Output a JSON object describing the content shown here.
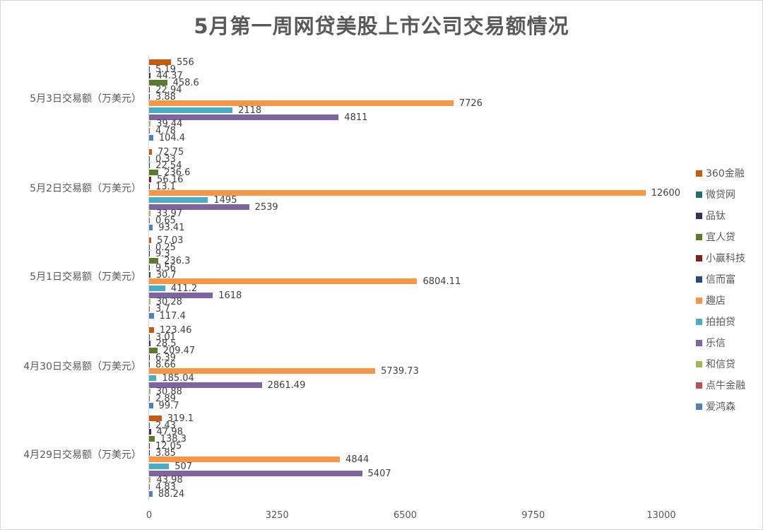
{
  "chart_data": {
    "type": "bar",
    "orientation": "horizontal",
    "title": "5月第一周网贷美股上市公司交易额情况",
    "xlabel": "",
    "ylabel": "",
    "xlim": [
      0,
      13000
    ],
    "x_ticks": [
      "0",
      "3250",
      "6500",
      "9750",
      "13000"
    ],
    "grid": false,
    "legend_position": "right",
    "categories": [
      "5月3日交易额（万美元）",
      "5月2日交易额（万美元）",
      "5月1日交易额（万美元）",
      "4月30日交易额（万美元）",
      "4月29日交易额（万美元）"
    ],
    "series": [
      {
        "name": "360金融",
        "color": "#c55a11",
        "values": [
          556,
          72.75,
          57.03,
          123.46,
          319.1
        ]
      },
      {
        "name": "微贷网",
        "color": "#1f6e7a",
        "values": [
          5.19,
          0.33,
          0.25,
          3.01,
          2.43
        ]
      },
      {
        "name": "品钛",
        "color": "#3c2f5c",
        "values": [
          44.37,
          22.54,
          9.3,
          28.5,
          47.98
        ]
      },
      {
        "name": "宜人贷",
        "color": "#5a7a2e",
        "values": [
          458.6,
          236.6,
          236.3,
          209.47,
          138.3
        ]
      },
      {
        "name": "小赢科技",
        "color": "#7b2222",
        "values": [
          22.94,
          56.16,
          9.56,
          6.39,
          12.05
        ]
      },
      {
        "name": "信而富",
        "color": "#264b7a",
        "values": [
          3.88,
          13.1,
          30.7,
          8.66,
          3.85
        ]
      },
      {
        "name": "趣店",
        "color": "#f79646",
        "values": [
          7726,
          12600,
          6804.11,
          5739.73,
          4844
        ]
      },
      {
        "name": "拍拍贷",
        "color": "#4bacc6",
        "values": [
          2118,
          1495,
          411.2,
          185.04,
          507
        ]
      },
      {
        "name": "乐信",
        "color": "#8064a2",
        "values": [
          4811,
          2539,
          1618,
          2861.49,
          5407
        ]
      },
      {
        "name": "和信贷",
        "color": "#9bbb59",
        "values": [
          39.44,
          33.97,
          30.28,
          30.88,
          43.98
        ]
      },
      {
        "name": "点牛金融",
        "color": "#c0504d",
        "values": [
          4.78,
          0.65,
          3.7,
          2.89,
          4.83
        ]
      },
      {
        "name": "爱鸿森",
        "color": "#4f81bd",
        "values": [
          104.4,
          93.41,
          117.4,
          99.7,
          88.24
        ]
      }
    ]
  },
  "labels": {
    "title": "5月第一周网贷美股上市公司交易额情况"
  }
}
